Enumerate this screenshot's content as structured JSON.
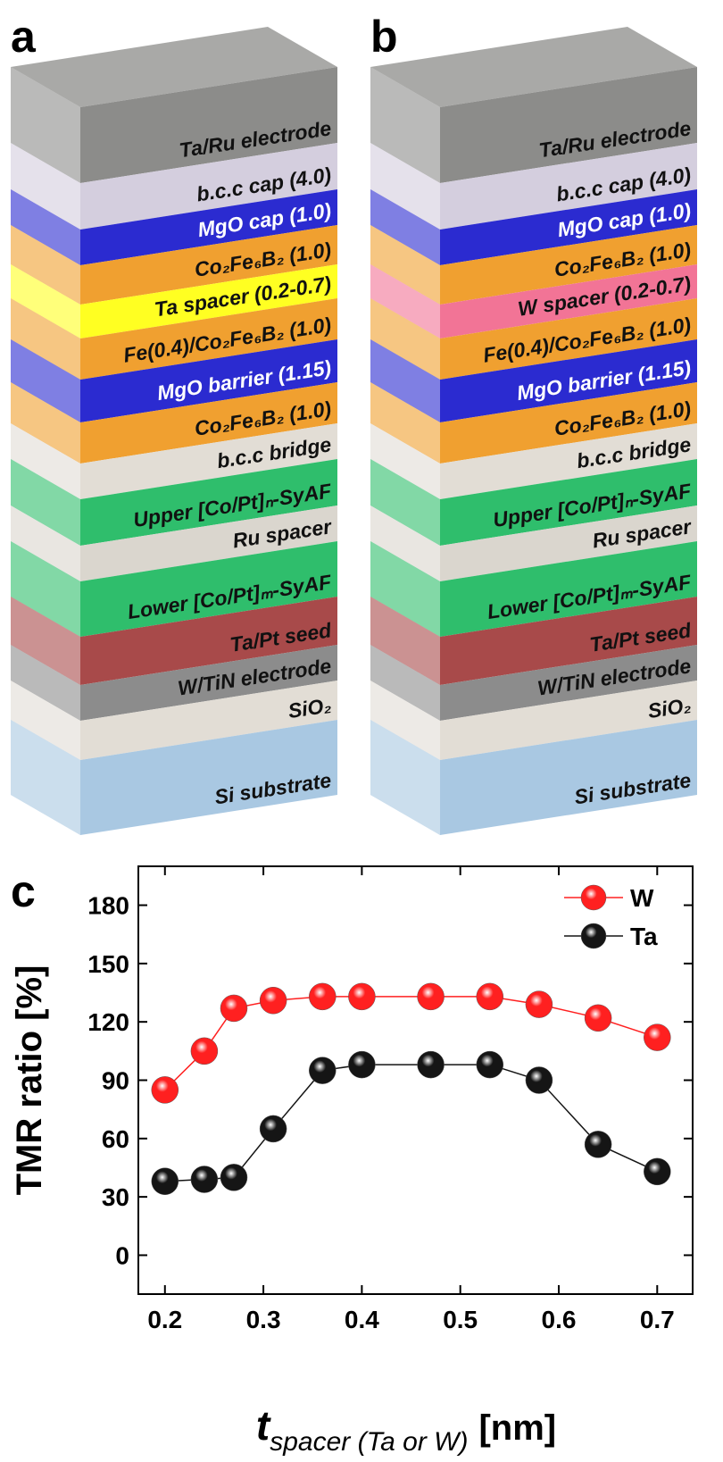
{
  "panels": [
    {
      "label": "a",
      "layers": [
        {
          "text": "Ta/Ru electrode",
          "color": "#8c8c8a"
        },
        {
          "text": "b.c.c cap (4.0)",
          "color": "#d4cede"
        },
        {
          "text": "MgO cap (1.0)",
          "color": "#2b2bd0"
        },
        {
          "text": "Co₂Fe₆B₂ (1.0)",
          "color": "#f0a030"
        },
        {
          "text": "Ta spacer (0.2-0.7)",
          "color": "#ffff22"
        },
        {
          "text": "Fe(0.4)/Co₂Fe₆B₂ (1.0)",
          "color": "#f0a030"
        },
        {
          "text": "MgO barrier (1.15)",
          "color": "#2b2bd0"
        },
        {
          "text": "Co₂Fe₆B₂ (1.0)",
          "color": "#f0a030"
        },
        {
          "text": "b.c.c bridge",
          "color": "#e2ddd5"
        },
        {
          "text": "Upper [Co/Pt]ₙ-SyAF",
          "color": "#2fbe6c"
        },
        {
          "text": "Ru spacer",
          "color": "#dad6ce"
        },
        {
          "text": "Lower [Co/Pt]ₘ-SyAF",
          "color": "#2fbe6c"
        },
        {
          "text": "Ta/Pt seed",
          "color": "#a84a4a"
        },
        {
          "text": "W/TiN electrode",
          "color": "#8c8c8c"
        },
        {
          "text": "SiO₂",
          "color": "#e2ddd5"
        },
        {
          "text": "Si substrate",
          "color": "#a9c8e2"
        }
      ]
    },
    {
      "label": "b",
      "layers": [
        {
          "text": "Ta/Ru electrode",
          "color": "#8c8c8a"
        },
        {
          "text": "b.c.c cap (4.0)",
          "color": "#d4cede"
        },
        {
          "text": "MgO cap (1.0)",
          "color": "#2b2bd0"
        },
        {
          "text": "Co₂Fe₆B₂ (1.0)",
          "color": "#f0a030"
        },
        {
          "text": "W spacer (0.2-0.7)",
          "color": "#f27496"
        },
        {
          "text": "Fe(0.4)/Co₂Fe₆B₂ (1.0)",
          "color": "#f0a030"
        },
        {
          "text": "MgO barrier (1.15)",
          "color": "#2b2bd0"
        },
        {
          "text": "Co₂Fe₆B₂ (1.0)",
          "color": "#f0a030"
        },
        {
          "text": "b.c.c bridge",
          "color": "#e2ddd5"
        },
        {
          "text": "Upper [Co/Pt]ₙ-SyAF",
          "color": "#2fbe6c"
        },
        {
          "text": "Ru spacer",
          "color": "#dad6ce"
        },
        {
          "text": "Lower [Co/Pt]ₘ-SyAF",
          "color": "#2fbe6c"
        },
        {
          "text": "Ta/Pt seed",
          "color": "#a84a4a"
        },
        {
          "text": "W/TiN electrode",
          "color": "#8c8c8c"
        },
        {
          "text": "SiO₂",
          "color": "#e2ddd5"
        },
        {
          "text": "Si substrate",
          "color": "#a9c8e2"
        }
      ]
    }
  ],
  "chart_data": {
    "type": "line",
    "panel_label": "c",
    "y_label": "TMR ratio [%]",
    "x_label": {
      "symbol": "t",
      "subscript": "spacer (Ta or W)",
      "unit": "[nm]"
    },
    "xlim": [
      0.173,
      0.736
    ],
    "xticks": [
      0.2,
      0.3,
      0.4,
      0.5,
      0.6,
      0.7
    ],
    "ylim": [
      -20,
      200
    ],
    "yticks": [
      0,
      30,
      60,
      90,
      120,
      150,
      180
    ],
    "legend": "upper right",
    "series": [
      {
        "name": "W",
        "color": "#ff2020",
        "x": [
          0.2,
          0.24,
          0.27,
          0.31,
          0.36,
          0.4,
          0.47,
          0.53,
          0.58,
          0.64,
          0.7
        ],
        "values": [
          85,
          105,
          127,
          131,
          133,
          133,
          133,
          133,
          129,
          122,
          112
        ]
      },
      {
        "name": "Ta",
        "color": "#151515",
        "x": [
          0.2,
          0.24,
          0.27,
          0.31,
          0.36,
          0.4,
          0.47,
          0.53,
          0.58,
          0.64,
          0.7
        ],
        "values": [
          38,
          39,
          40,
          65,
          95,
          98,
          98,
          98,
          90,
          57,
          43
        ]
      }
    ]
  }
}
